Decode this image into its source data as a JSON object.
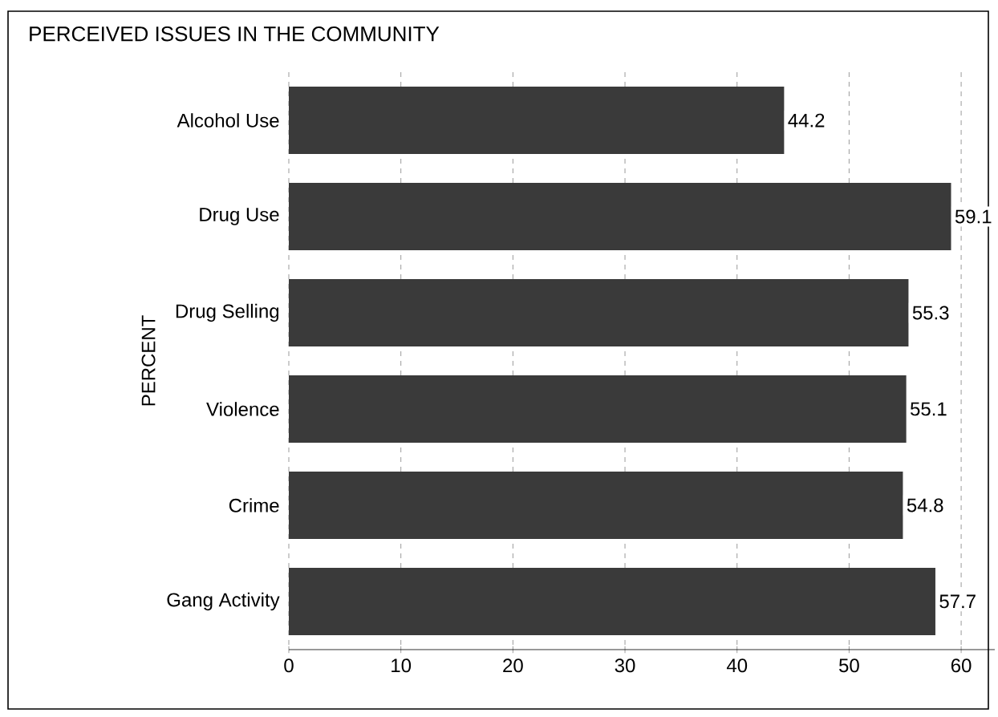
{
  "chart_data": {
    "type": "bar",
    "orientation": "horizontal",
    "title": "PERCEIVED ISSUES IN THE COMMUNITY",
    "ylabel": "PERCENT",
    "categories": [
      "Alcohol Use",
      "Drug Use",
      "Drug Selling",
      "Violence",
      "Crime",
      "Gang Activity"
    ],
    "values": [
      44.2,
      59.1,
      55.3,
      55.1,
      54.8,
      57.7
    ],
    "color": "#3a3a3a",
    "xlim": [
      0,
      63
    ],
    "xticks": [
      0,
      10,
      20,
      30,
      40,
      50,
      60
    ],
    "grid": "x",
    "data_labels": true
  }
}
